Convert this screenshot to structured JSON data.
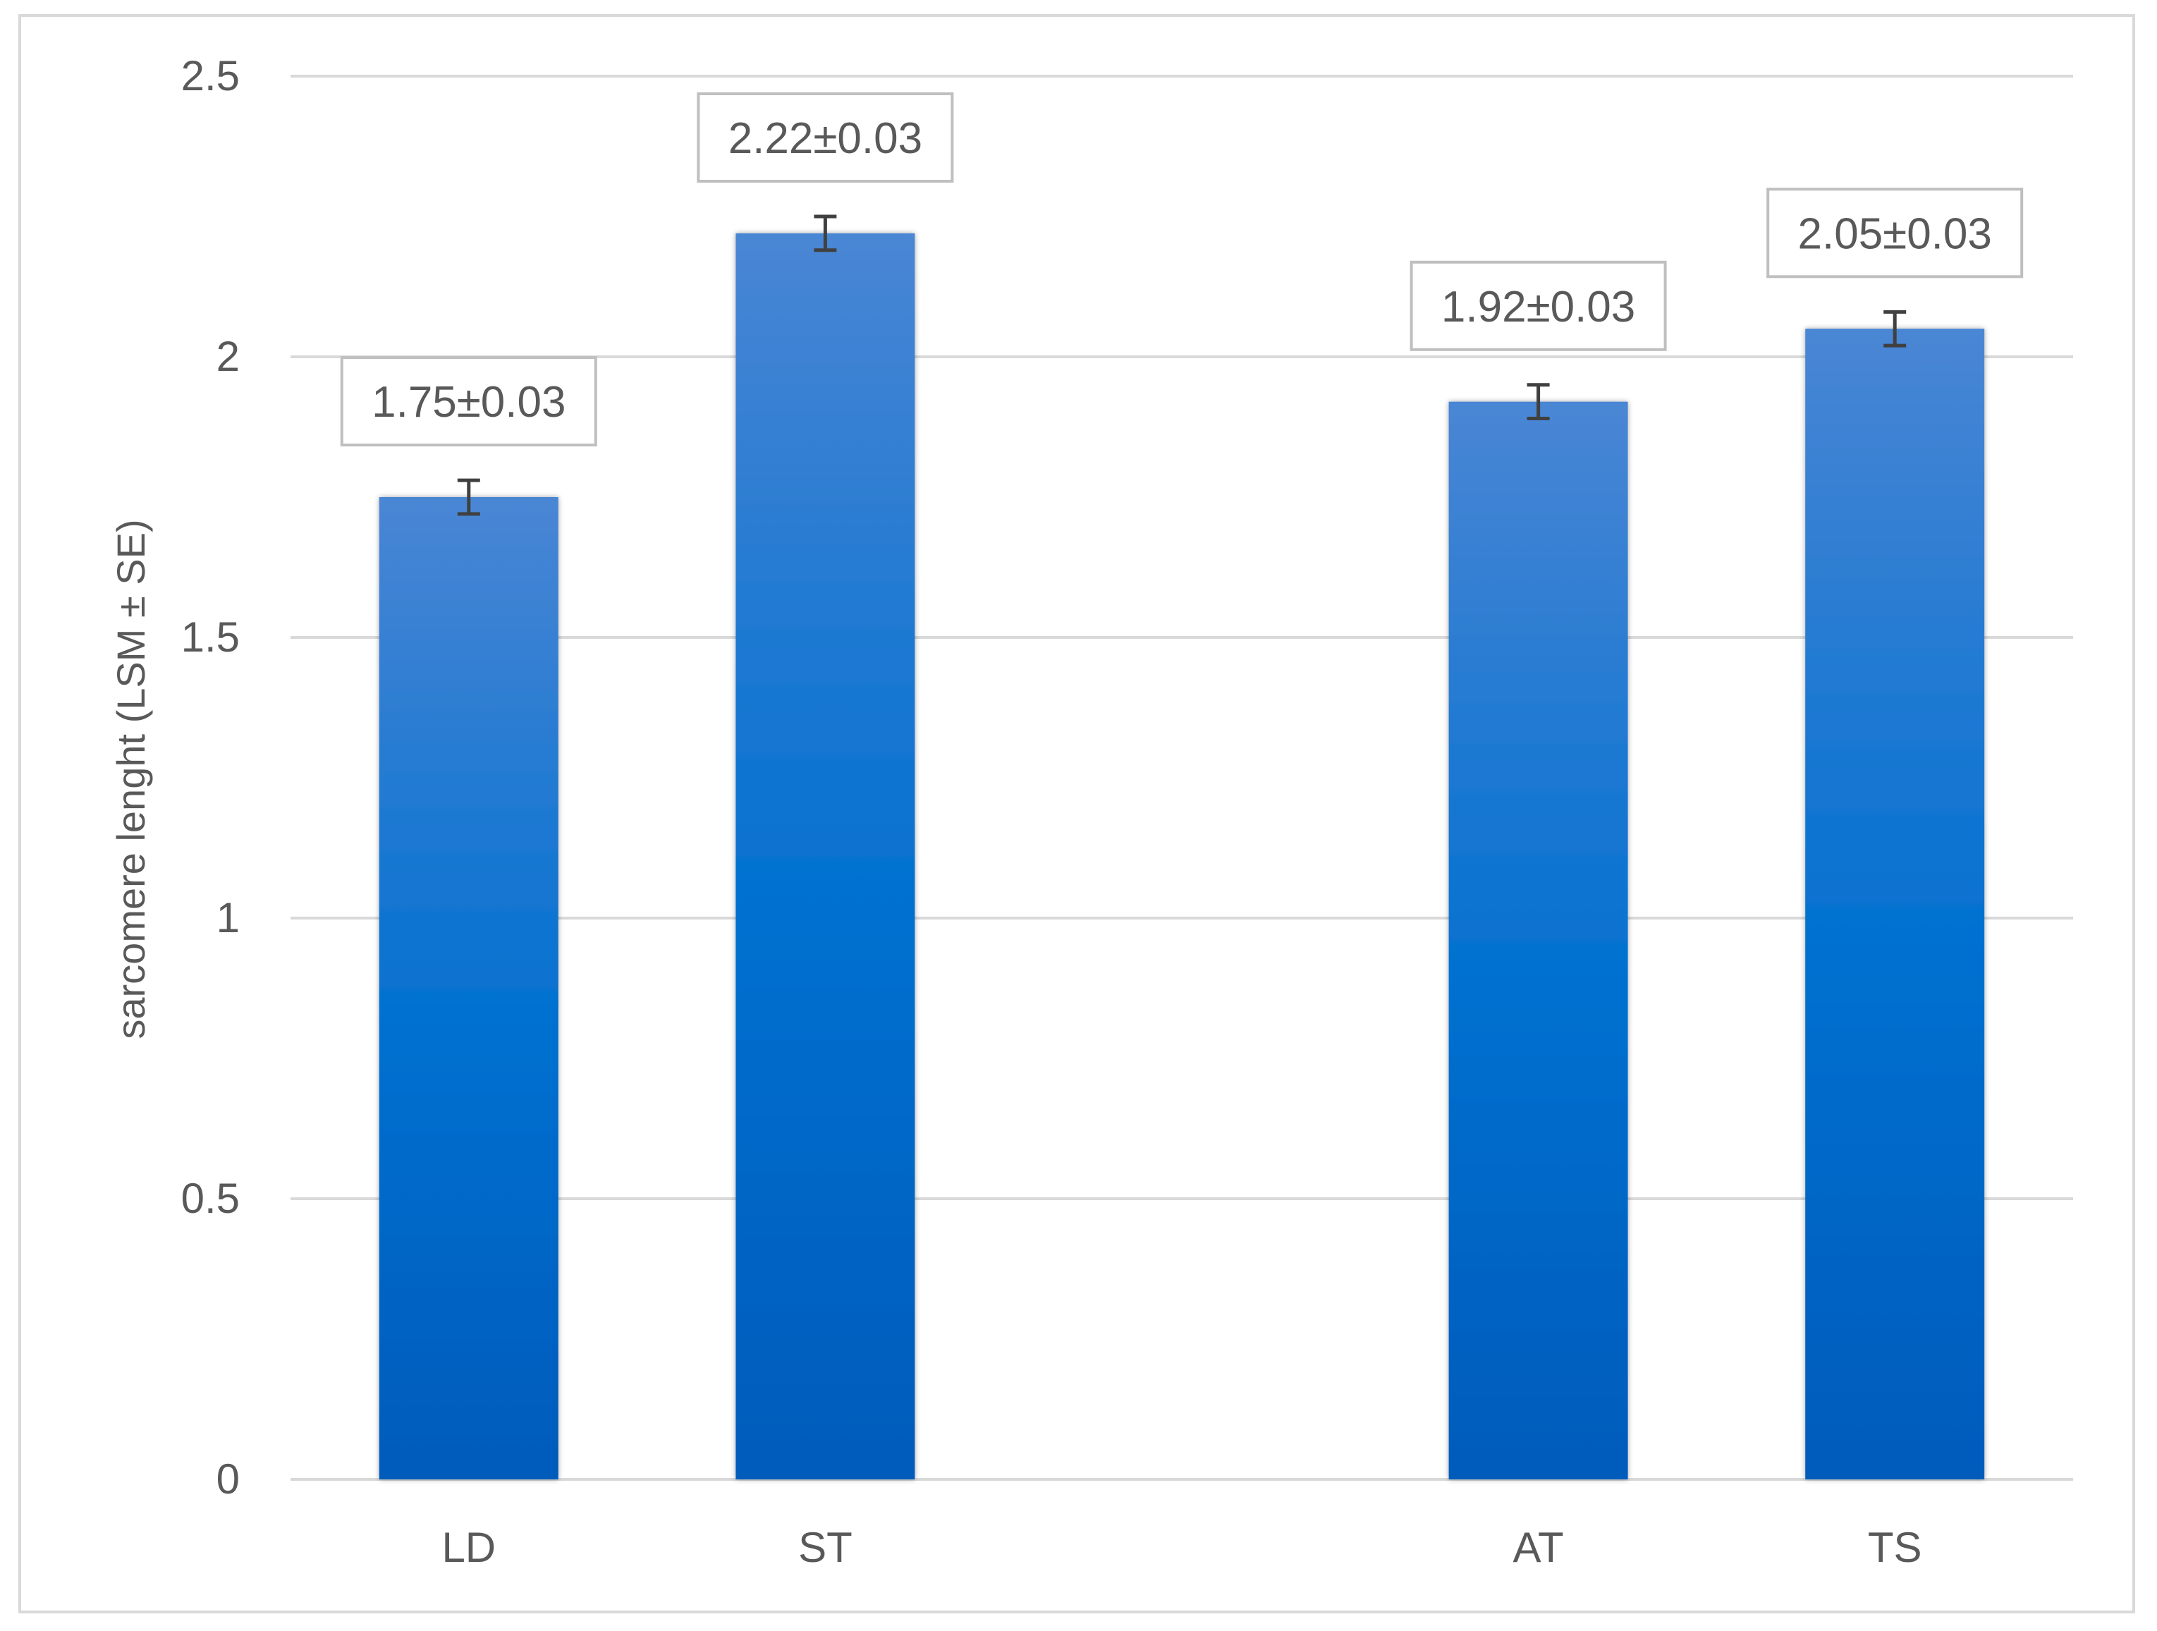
{
  "chart_data": {
    "type": "bar",
    "categories": [
      "LD",
      "ST",
      "",
      "AT",
      "TS"
    ],
    "values": [
      1.75,
      2.22,
      null,
      1.92,
      2.05
    ],
    "errors": [
      0.03,
      0.03,
      null,
      0.03,
      0.03
    ],
    "data_labels": [
      "1.75±0.03",
      "2.22±0.03",
      "",
      "1.92±0.03",
      "2.05±0.03"
    ],
    "title": "",
    "xlabel": "",
    "ylabel": "sarcomere lenght (LSM ± SE)",
    "ylim": [
      0,
      2.5
    ],
    "yticks": [
      "0",
      "0.5",
      "1",
      "1.5",
      "2",
      "2.5"
    ],
    "ytick_values": [
      0,
      0.5,
      1,
      1.5,
      2,
      2.5
    ],
    "grid": true,
    "legend": "none",
    "colors": {
      "bar_top": "#4a86d4",
      "bar_mid": "#0070d0",
      "bar_bottom": "#005bbb",
      "grid": "#d9d9d9",
      "text": "#595959",
      "error_bar": "#404040",
      "label_border": "#bfbfbf"
    }
  }
}
